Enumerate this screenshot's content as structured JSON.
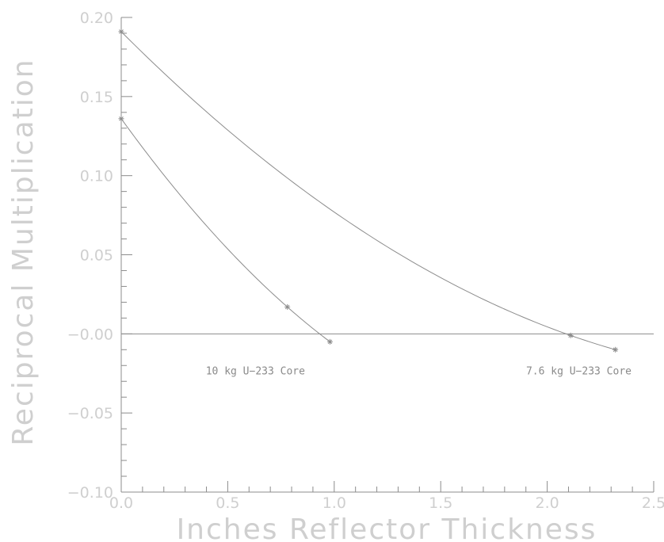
{
  "chart_data": {
    "type": "line",
    "xlabel": "Inches Reflector Thickness",
    "ylabel": "Reciprocal Multiplication",
    "xlim": [
      0,
      2.5
    ],
    "ylim": [
      -0.1,
      0.2
    ],
    "x_ticks": [
      0.0,
      0.5,
      1.0,
      1.5,
      2.0,
      2.5
    ],
    "x_tick_labels": [
      "0.0",
      "0.5",
      "1.0",
      "1.5",
      "2.0",
      "2.5"
    ],
    "y_ticks": [
      -0.1,
      -0.05,
      0.0,
      0.05,
      0.1,
      0.15,
      0.2
    ],
    "y_tick_labels": [
      "−0.10",
      "−0.05",
      "−0.00",
      "0.05",
      "0.10",
      "0.15",
      "0.20"
    ],
    "zero_line": true,
    "grid": false,
    "series": [
      {
        "name": "10 kg U−233 Core",
        "x": [
          0.0,
          0.78,
          0.98
        ],
        "y": [
          0.136,
          0.017,
          -0.005
        ]
      },
      {
        "name": "7.6 kg U−233 Core",
        "x": [
          0.0,
          2.11,
          2.32
        ],
        "y": [
          0.191,
          -0.001,
          -0.01
        ]
      }
    ],
    "annotations": [
      {
        "text": "10 kg U−233 Core",
        "x": 0.63,
        "y": -0.023
      },
      {
        "text": "7.6 kg U−233 Core",
        "x": 2.3,
        "y": -0.023
      }
    ],
    "colors": {
      "axis": "#8c8c8c",
      "labels": "#cfcfcf",
      "curves": "#8c8c8c"
    }
  }
}
